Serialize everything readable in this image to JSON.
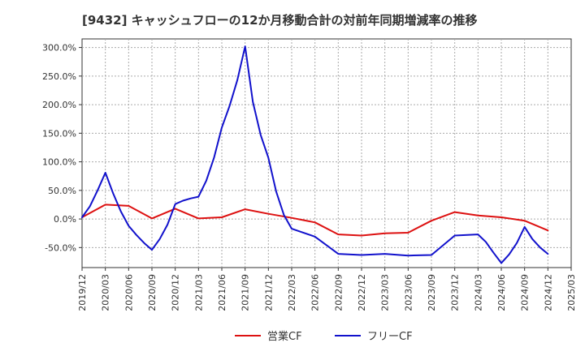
{
  "chart_data": {
    "type": "line",
    "title": "[9432]  キャッシュフローの12か月移動合計の対前年同期増減率の推移",
    "xlabel": "",
    "ylabel": "",
    "ylim": [
      -85,
      315
    ],
    "yticks": [
      -50,
      0,
      50,
      100,
      150,
      200,
      250,
      300
    ],
    "ytick_labels": [
      "-50.0%",
      "0.0%",
      "50.0%",
      "100.0%",
      "150.0%",
      "200.0%",
      "250.0%",
      "300.0%"
    ],
    "xticks": [
      "2019/12",
      "2020/03",
      "2020/06",
      "2020/09",
      "2020/12",
      "2021/03",
      "2021/06",
      "2021/09",
      "2021/12",
      "2022/03",
      "2022/06",
      "2022/09",
      "2022/12",
      "2023/03",
      "2023/06",
      "2023/09",
      "2023/12",
      "2024/03",
      "2024/06",
      "2024/09",
      "2024/12",
      "2025/03"
    ],
    "grid": true,
    "legend_position": "bottom",
    "series": [
      {
        "name": "営業CF",
        "color": "#dd1111",
        "points": [
          [
            0,
            3
          ],
          [
            3,
            25
          ],
          [
            6,
            23
          ],
          [
            9,
            1
          ],
          [
            12,
            18
          ],
          [
            15,
            1
          ],
          [
            18,
            3
          ],
          [
            21,
            17
          ],
          [
            24,
            9
          ],
          [
            27,
            2
          ],
          [
            30,
            -6
          ],
          [
            33,
            -27
          ],
          [
            36,
            -29
          ],
          [
            39,
            -25
          ],
          [
            42,
            -24
          ],
          [
            45,
            -3
          ],
          [
            48,
            12
          ],
          [
            51,
            6
          ],
          [
            54,
            3
          ],
          [
            57,
            -3
          ],
          [
            60,
            -20
          ]
        ]
      },
      {
        "name": "フリーCF",
        "color": "#1111cc",
        "points": [
          [
            0,
            3
          ],
          [
            1,
            22
          ],
          [
            2,
            50
          ],
          [
            3,
            81
          ],
          [
            4,
            45
          ],
          [
            5,
            13
          ],
          [
            6,
            -12
          ],
          [
            7,
            -28
          ],
          [
            8,
            -42
          ],
          [
            9,
            -54
          ],
          [
            10,
            -35
          ],
          [
            11,
            -10
          ],
          [
            12,
            26
          ],
          [
            13,
            32
          ],
          [
            14,
            36
          ],
          [
            15,
            39
          ],
          [
            16,
            67
          ],
          [
            17,
            107
          ],
          [
            18,
            160
          ],
          [
            19,
            198
          ],
          [
            20,
            243
          ],
          [
            21,
            302
          ],
          [
            22,
            205
          ],
          [
            23,
            147
          ],
          [
            24,
            107
          ],
          [
            25,
            48
          ],
          [
            26,
            7
          ],
          [
            27,
            -17
          ],
          [
            30,
            -31
          ],
          [
            33,
            -61
          ],
          [
            36,
            -63
          ],
          [
            39,
            -61
          ],
          [
            42,
            -64
          ],
          [
            45,
            -63
          ],
          [
            48,
            -29
          ],
          [
            51,
            -27
          ],
          [
            52,
            -40
          ],
          [
            53,
            -59
          ],
          [
            54,
            -77
          ],
          [
            55,
            -62
          ],
          [
            56,
            -42
          ],
          [
            57,
            -14
          ],
          [
            58,
            -35
          ],
          [
            59,
            -50
          ],
          [
            60,
            -61
          ]
        ]
      }
    ]
  }
}
